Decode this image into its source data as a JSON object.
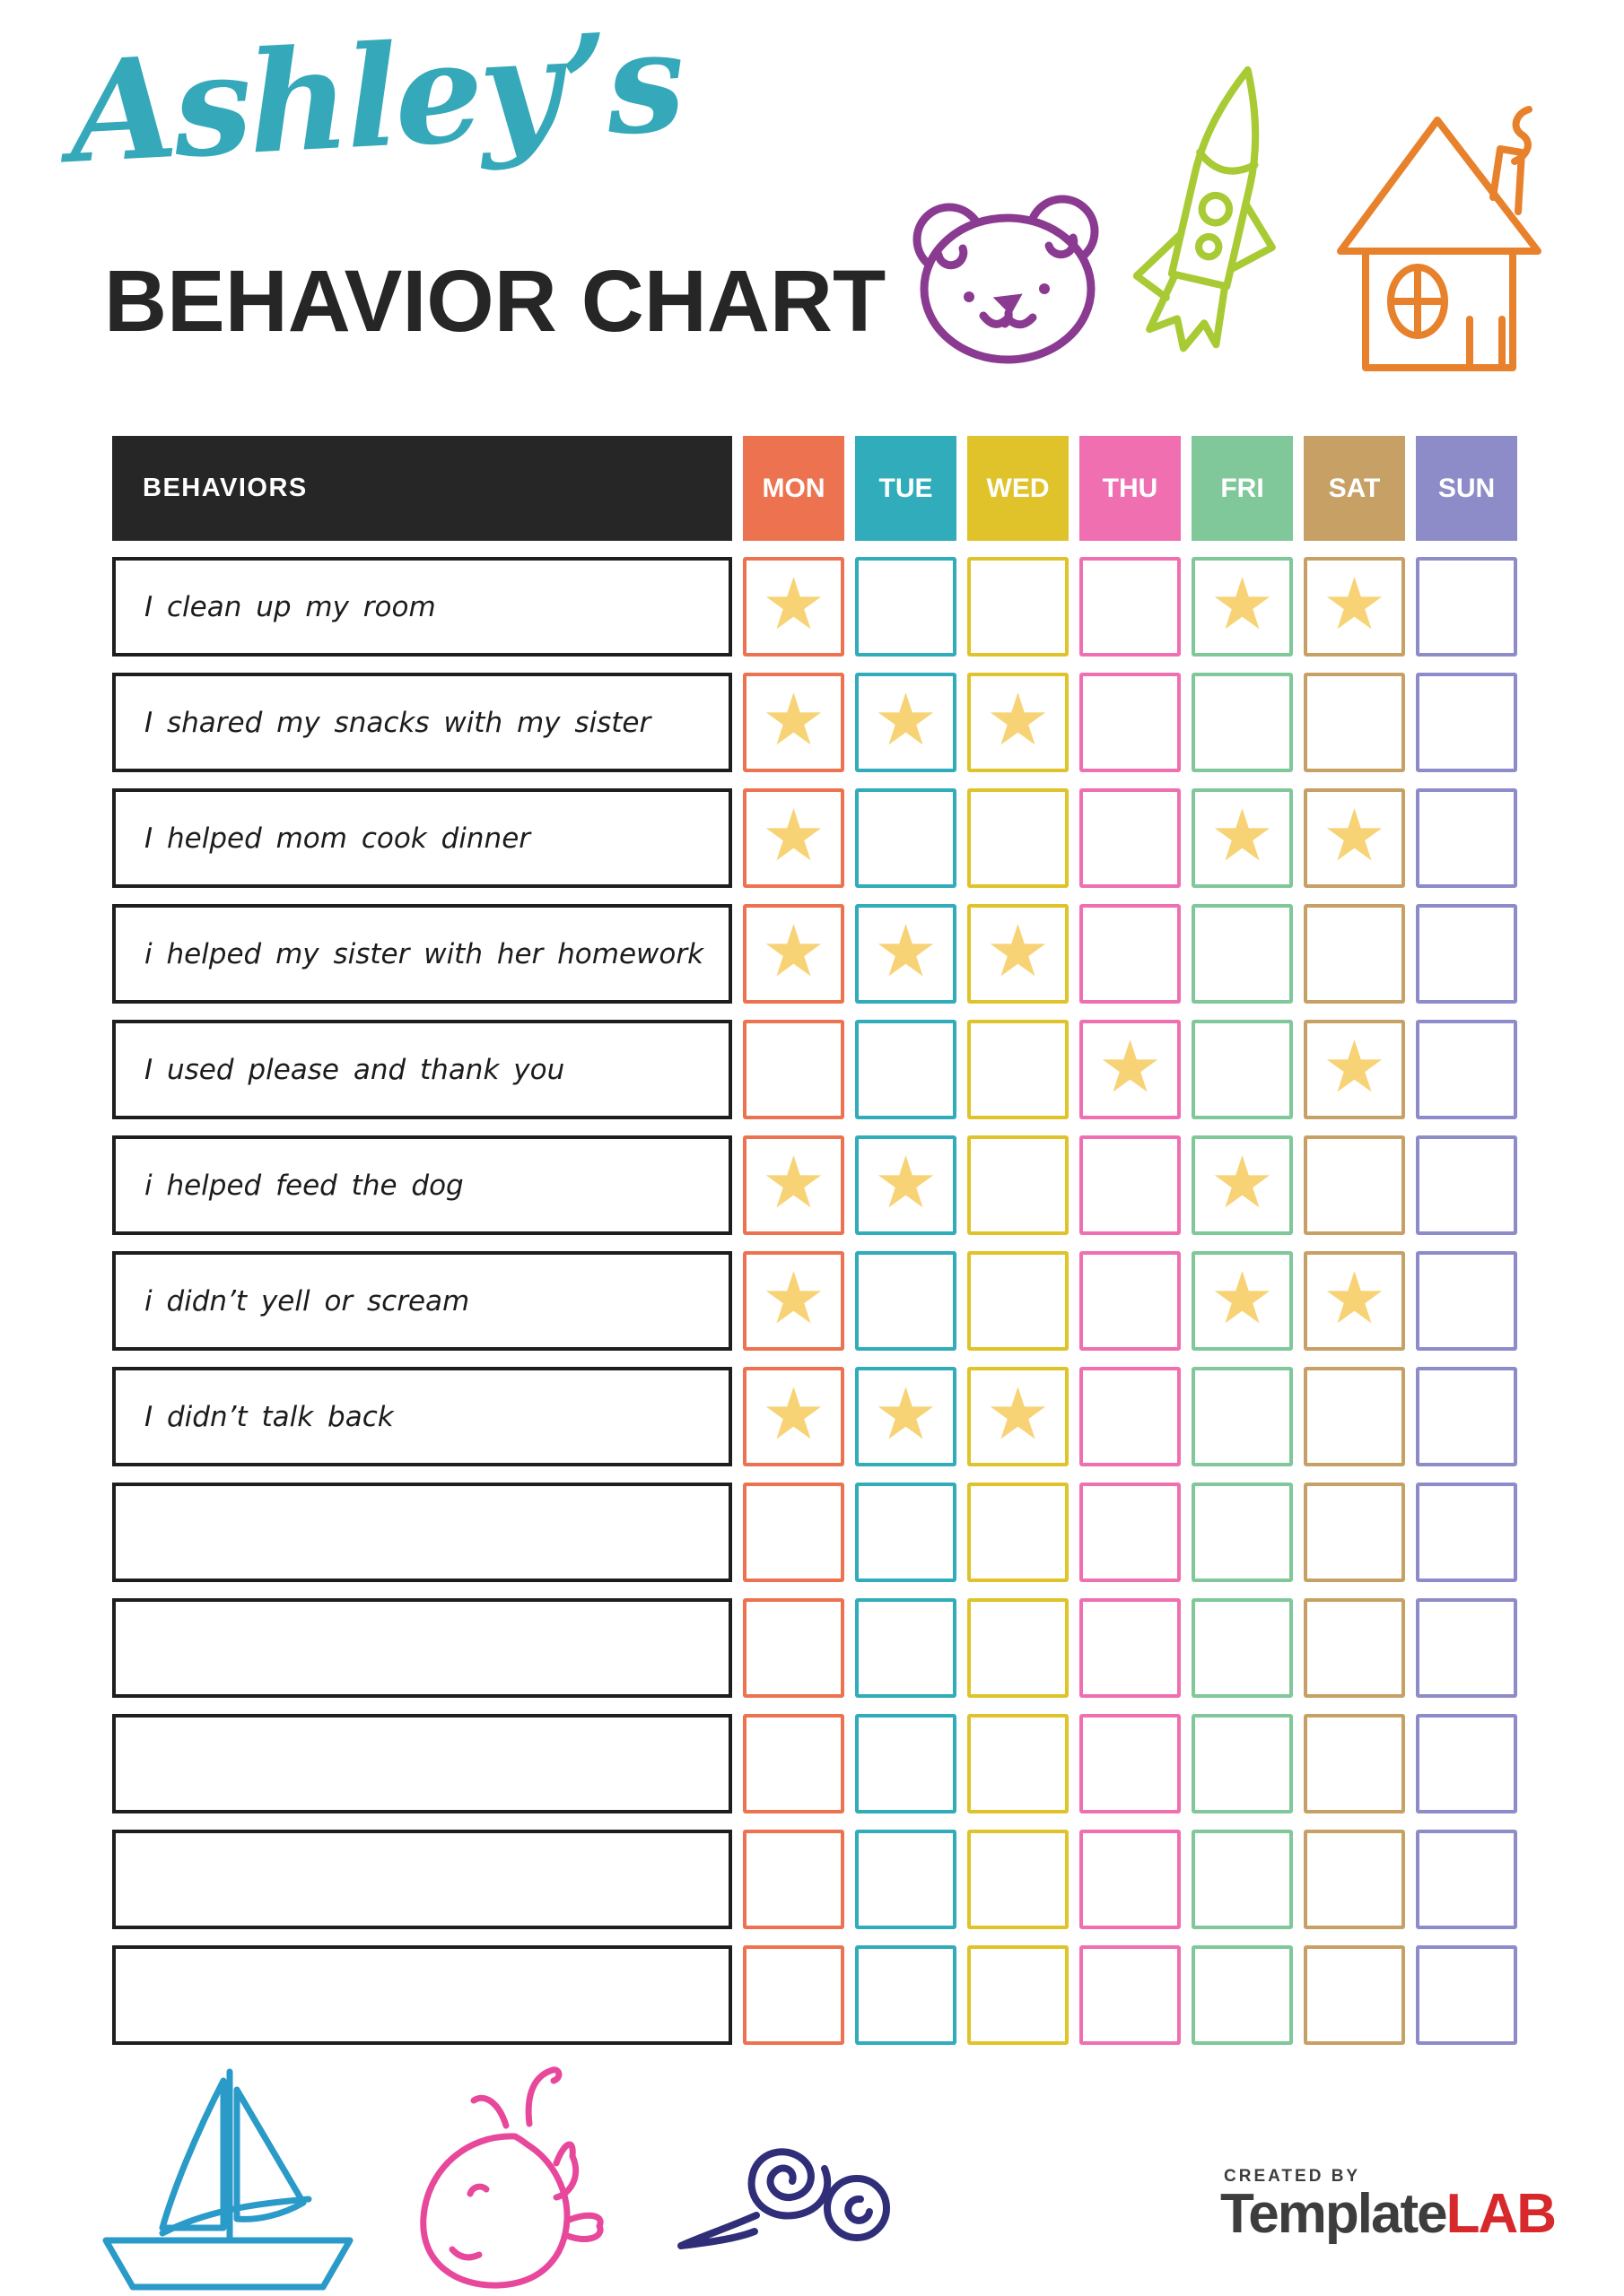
{
  "header": {
    "script_title": "Ashley’s",
    "main_title": "BEHAVIOR CHART"
  },
  "palette": {
    "script_title": "#35a8ba",
    "heading": "#262626",
    "behaviors_header_bg": "#262626",
    "row_border": "#1e1e1e",
    "star": "#f7d376",
    "logo_gray": "#3d3d3d",
    "logo_red": "#d7282c"
  },
  "doodles": {
    "bear_color": "#8a3a90",
    "rocket_color": "#a8cb35",
    "house_color": "#e8812c",
    "boat_color": "#2a9ac8",
    "whale_color": "#e8489c",
    "snail_color": "#312e79"
  },
  "table": {
    "behaviors_header": "BEHAVIORS",
    "star_glyph": "★",
    "days": [
      {
        "label": "MON",
        "color": "#ed7350"
      },
      {
        "label": "TUE",
        "color": "#31acba"
      },
      {
        "label": "WED",
        "color": "#e0c32b"
      },
      {
        "label": "THU",
        "color": "#ef6fb0"
      },
      {
        "label": "FRI",
        "color": "#80c79a"
      },
      {
        "label": "SAT",
        "color": "#c7a065"
      },
      {
        "label": "SUN",
        "color": "#8d8cc8"
      }
    ],
    "rows": [
      {
        "behavior": "I clean up my room",
        "stars": [
          "MON",
          "FRI",
          "SAT"
        ]
      },
      {
        "behavior": "I shared my snacks with my sister",
        "stars": [
          "MON",
          "TUE",
          "WED"
        ]
      },
      {
        "behavior": "I helped mom cook dinner",
        "stars": [
          "MON",
          "FRI",
          "SAT"
        ]
      },
      {
        "behavior": "i helped my sister with her homework",
        "stars": [
          "MON",
          "TUE",
          "WED"
        ]
      },
      {
        "behavior": "I used please and thank you",
        "stars": [
          "THU",
          "SAT"
        ]
      },
      {
        "behavior": "i helped feed the dog",
        "stars": [
          "MON",
          "TUE",
          "FRI"
        ]
      },
      {
        "behavior": "i didn’t yell or scream",
        "stars": [
          "MON",
          "FRI",
          "SAT"
        ]
      },
      {
        "behavior": "I didn’t talk back",
        "stars": [
          "MON",
          "TUE",
          "WED"
        ]
      },
      {
        "behavior": "",
        "stars": []
      },
      {
        "behavior": "",
        "stars": []
      },
      {
        "behavior": "",
        "stars": []
      },
      {
        "behavior": "",
        "stars": []
      },
      {
        "behavior": "",
        "stars": []
      }
    ]
  },
  "footer": {
    "created_by": "CREATED BY",
    "logo_template": "Template",
    "logo_lab": "LAB"
  }
}
